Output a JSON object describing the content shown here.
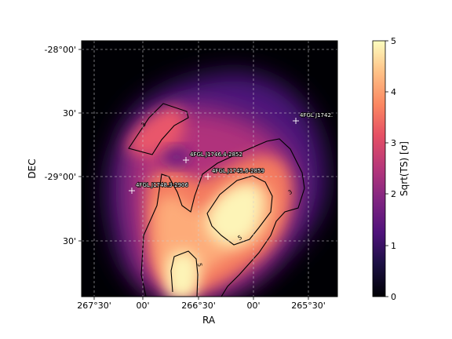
{
  "chart_data": {
    "type": "heatmap",
    "colormap": "magma",
    "xlabel": "RA",
    "ylabel": "DEC",
    "x_tick_labels": [
      "267°30'",
      "00'",
      "266°30'",
      "00'",
      "265°30'"
    ],
    "y_tick_labels": [
      "-28°00'",
      "30'",
      "-29°00'",
      "30'"
    ],
    "colorbar": {
      "label": "Sqrt(TS) [σ]",
      "range": [
        0,
        5
      ],
      "tick_labels": [
        "0",
        "1",
        "2",
        "3",
        "4",
        "5"
      ]
    },
    "grid": true,
    "contour_levels": [
      {
        "level": 3,
        "label": "3"
      },
      {
        "level": 5,
        "label": "5"
      }
    ],
    "sources": [
      {
        "name": "4FGL J1746.4-2852"
      },
      {
        "name": "4FGL J1745.6-2859"
      },
      {
        "name": "4FGL J1748.3-2906"
      },
      {
        "name": "4FGL J1742."
      }
    ]
  }
}
